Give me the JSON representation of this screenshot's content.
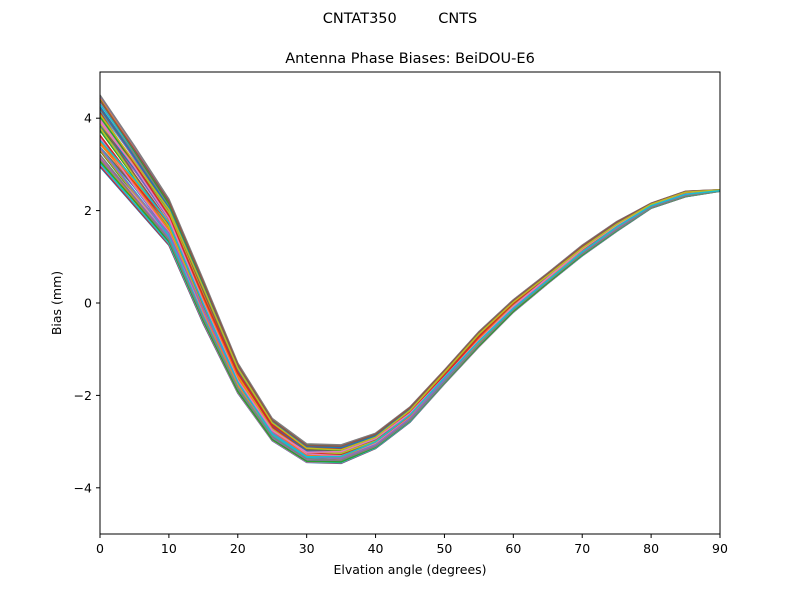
{
  "chart_data": {
    "type": "line",
    "suptitle": "CNTAT350         CNTS",
    "title": "Antenna Phase Biases: BeiDOU-E6",
    "xlabel": "Elvation angle (degrees)",
    "ylabel": "Bias (mm)",
    "xlim": [
      0,
      90
    ],
    "ylim": [
      -5,
      5
    ],
    "xticks": [
      0,
      10,
      20,
      30,
      40,
      50,
      60,
      70,
      80,
      90
    ],
    "yticks": [
      -4,
      -2,
      0,
      2,
      4
    ],
    "x": [
      0,
      5,
      10,
      15,
      20,
      25,
      30,
      35,
      40,
      45,
      50,
      55,
      60,
      65,
      70,
      75,
      80,
      85,
      90
    ],
    "grid": false,
    "legend": "none",
    "series_count": 60,
    "series_envelope": {
      "upper": [
        4.5,
        3.4,
        2.25,
        0.5,
        -1.3,
        -2.5,
        -3.05,
        -3.07,
        -2.82,
        -2.25,
        -1.45,
        -0.62,
        0.07,
        0.65,
        1.25,
        1.76,
        2.16,
        2.42,
        2.45
      ],
      "lower": [
        2.95,
        2.1,
        1.25,
        -0.45,
        -1.95,
        -2.98,
        -3.45,
        -3.47,
        -3.15,
        -2.58,
        -1.75,
        -0.95,
        -0.2,
        0.42,
        1.02,
        1.55,
        2.05,
        2.3,
        2.42
      ]
    },
    "colors": [
      "#1f77b4",
      "#ff7f0e",
      "#2ca02c",
      "#d62728",
      "#9467bd",
      "#8c564b",
      "#e377c2",
      "#7f7f7f",
      "#bcbd22",
      "#17becf"
    ]
  }
}
